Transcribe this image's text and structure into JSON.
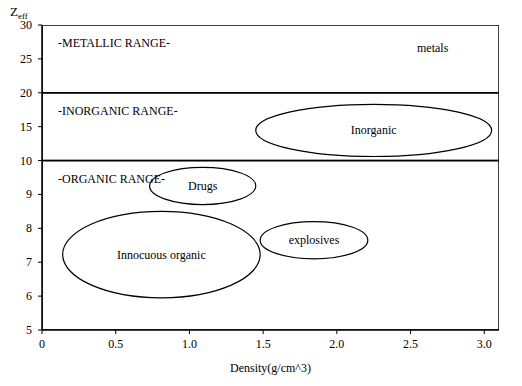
{
  "chart_data": {
    "type": "region",
    "color": "#000000",
    "x_label": "Density(g/cm^3)",
    "y_label": "Z",
    "y_label_subscript": "eff",
    "xlim": [
      0,
      3.1
    ],
    "ylim": [
      5,
      30
    ],
    "xticks": [
      0,
      0.5,
      {
        "value": 1,
        "label": "1.0"
      },
      1.5,
      {
        "value": 2,
        "label": "2.0"
      },
      2.5,
      {
        "value": 3,
        "label": "3.0"
      }
    ],
    "yticks": [
      5,
      6,
      7,
      8,
      9,
      10,
      15,
      20,
      25,
      30
    ],
    "bands": [
      {
        "label": "-METALLIC RANGE-",
        "y_range": [
          20,
          30
        ]
      },
      {
        "label": "-INORGANIC RANGE-",
        "y_range": [
          10,
          20
        ]
      },
      {
        "label": "-ORGANIC RANGE-",
        "y_range": [
          5,
          10
        ]
      }
    ],
    "regions": [
      {
        "label": "Inorganic",
        "x_range": [
          1.45,
          3.05
        ],
        "y_range": [
          10.6,
          18.3
        ]
      },
      {
        "label": "Drugs",
        "x_range": [
          0.73,
          1.45
        ],
        "y_range": [
          8.7,
          9.8
        ]
      },
      {
        "label": "explosives",
        "x_range": [
          1.48,
          2.21
        ],
        "y_range": [
          7.1,
          8.2
        ]
      },
      {
        "label": "Innocuous organic",
        "x_range": [
          0.14,
          1.48
        ],
        "y_range": [
          5.95,
          8.5
        ]
      }
    ],
    "annotations": [
      {
        "text": "metals",
        "x": 2.65,
        "y": 26
      }
    ]
  }
}
